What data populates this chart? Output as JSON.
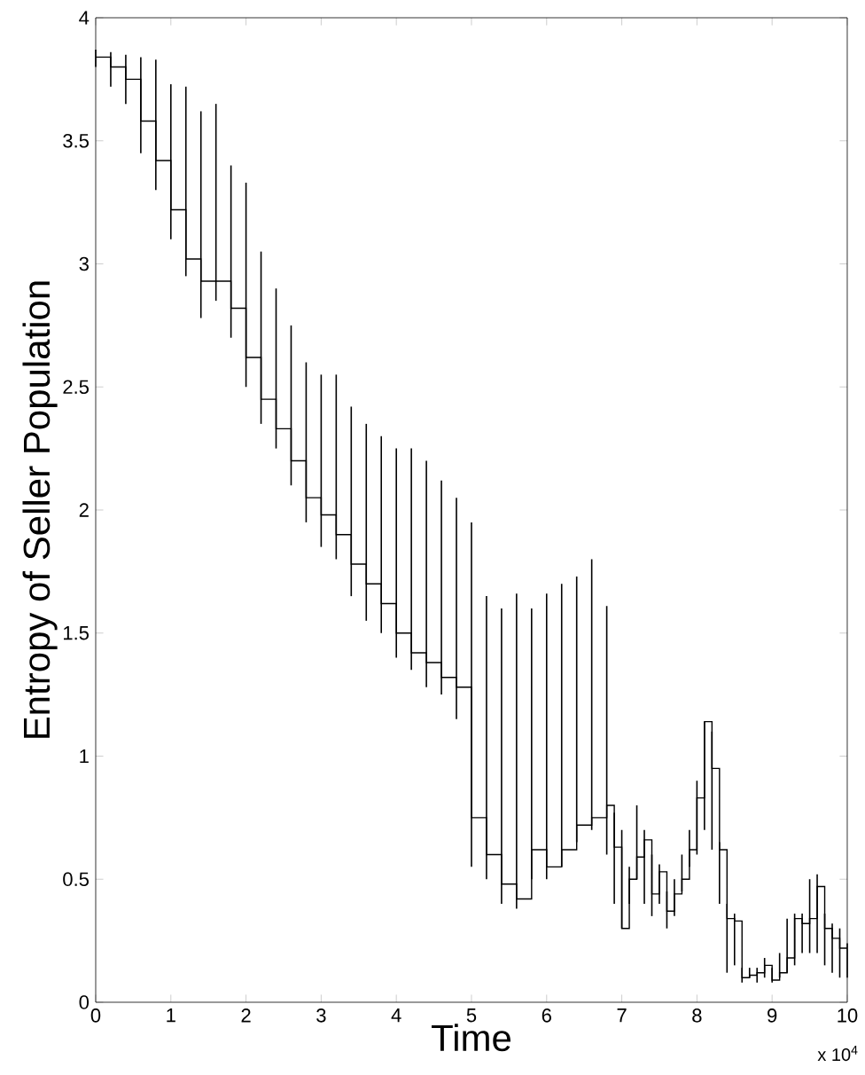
{
  "chart_data": {
    "type": "step",
    "xlabel": "Time",
    "ylabel": "Entropy of Seller Population",
    "annotations": [
      "x 10$^{4}$"
    ],
    "color": "#000000",
    "x": [
      0,
      0.2,
      0.4,
      0.6,
      0.8,
      1.0,
      1.2,
      1.4,
      1.6,
      1.8,
      2.0,
      2.2,
      2.4,
      2.6,
      2.8,
      3.0,
      3.2,
      3.4,
      3.6,
      3.8,
      4.0,
      4.2,
      4.4,
      4.6,
      4.8,
      5.0,
      5.2,
      5.4,
      5.6,
      5.8,
      6.0,
      6.2,
      6.4,
      6.6,
      6.8,
      6.9,
      7.0,
      7.1,
      7.2,
      7.3,
      7.4,
      7.5,
      7.6,
      7.7,
      7.8,
      7.9,
      8.0,
      8.1,
      8.2,
      8.3,
      8.4,
      8.5,
      8.6,
      8.7,
      8.8,
      8.9,
      9.0,
      9.1,
      9.2,
      9.3,
      9.4,
      9.5,
      9.6,
      9.7,
      9.8,
      9.9,
      10.0
    ],
    "values": [
      3.84,
      3.8,
      3.75,
      3.58,
      3.42,
      3.22,
      3.02,
      2.93,
      2.93,
      2.82,
      2.62,
      2.45,
      2.33,
      2.2,
      2.05,
      1.98,
      1.9,
      1.78,
      1.7,
      1.62,
      1.5,
      1.42,
      1.38,
      1.32,
      1.28,
      0.75,
      0.6,
      0.48,
      0.42,
      0.62,
      0.55,
      0.62,
      0.72,
      0.75,
      0.8,
      0.63,
      0.3,
      0.5,
      0.59,
      0.66,
      0.44,
      0.53,
      0.37,
      0.44,
      0.5,
      0.62,
      0.83,
      1.14,
      0.95,
      0.62,
      0.34,
      0.33,
      0.1,
      0.11,
      0.12,
      0.15,
      0.09,
      0.12,
      0.18,
      0.34,
      0.32,
      0.34,
      0.47,
      0.3,
      0.26,
      0.22,
      0.22
    ],
    "errors": [
      [
        3.8,
        3.87
      ],
      [
        3.72,
        3.86
      ],
      [
        3.65,
        3.85
      ],
      [
        3.45,
        3.84
      ],
      [
        3.3,
        3.83
      ],
      [
        3.1,
        3.73
      ],
      [
        2.95,
        3.72
      ],
      [
        2.78,
        3.62
      ],
      [
        2.85,
        3.65
      ],
      [
        2.7,
        3.4
      ],
      [
        2.5,
        3.33
      ],
      [
        2.35,
        3.05
      ],
      [
        2.25,
        2.9
      ],
      [
        2.1,
        2.75
      ],
      [
        1.95,
        2.6
      ],
      [
        1.85,
        2.55
      ],
      [
        1.8,
        2.55
      ],
      [
        1.65,
        2.42
      ],
      [
        1.55,
        2.35
      ],
      [
        1.5,
        2.3
      ],
      [
        1.4,
        2.25
      ],
      [
        1.35,
        2.25
      ],
      [
        1.28,
        2.2
      ],
      [
        1.25,
        2.12
      ],
      [
        1.15,
        2.05
      ],
      [
        0.55,
        1.95
      ],
      [
        0.5,
        1.65
      ],
      [
        0.4,
        1.6
      ],
      [
        0.38,
        1.66
      ],
      [
        0.5,
        1.6
      ],
      [
        0.5,
        1.66
      ],
      [
        0.55,
        1.7
      ],
      [
        0.65,
        1.73
      ],
      [
        0.7,
        1.8
      ],
      [
        0.6,
        1.61
      ],
      [
        0.4,
        0.77
      ],
      [
        0.3,
        0.7
      ],
      [
        0.4,
        0.55
      ],
      [
        0.5,
        0.8
      ],
      [
        0.4,
        0.7
      ],
      [
        0.35,
        0.6
      ],
      [
        0.4,
        0.56
      ],
      [
        0.3,
        0.45
      ],
      [
        0.35,
        0.5
      ],
      [
        0.45,
        0.6
      ],
      [
        0.55,
        0.7
      ],
      [
        0.6,
        0.9
      ],
      [
        0.7,
        1.14
      ],
      [
        0.62,
        1.1
      ],
      [
        0.4,
        0.65
      ],
      [
        0.12,
        0.4
      ],
      [
        0.15,
        0.36
      ],
      [
        0.08,
        0.14
      ],
      [
        0.1,
        0.14
      ],
      [
        0.08,
        0.14
      ],
      [
        0.1,
        0.18
      ],
      [
        0.08,
        0.14
      ],
      [
        0.1,
        0.2
      ],
      [
        0.12,
        0.34
      ],
      [
        0.15,
        0.36
      ],
      [
        0.2,
        0.36
      ],
      [
        0.2,
        0.5
      ],
      [
        0.2,
        0.52
      ],
      [
        0.15,
        0.36
      ],
      [
        0.12,
        0.32
      ],
      [
        0.1,
        0.3
      ],
      [
        0.1,
        0.24
      ]
    ],
    "xlim": [
      0,
      10
    ],
    "ylim": [
      0,
      4
    ],
    "xticks": [
      0,
      1,
      2,
      3,
      4,
      5,
      6,
      7,
      8,
      9,
      10
    ],
    "yticks": [
      0,
      0.5,
      1,
      1.5,
      2,
      2.5,
      3,
      3.5,
      4
    ]
  }
}
